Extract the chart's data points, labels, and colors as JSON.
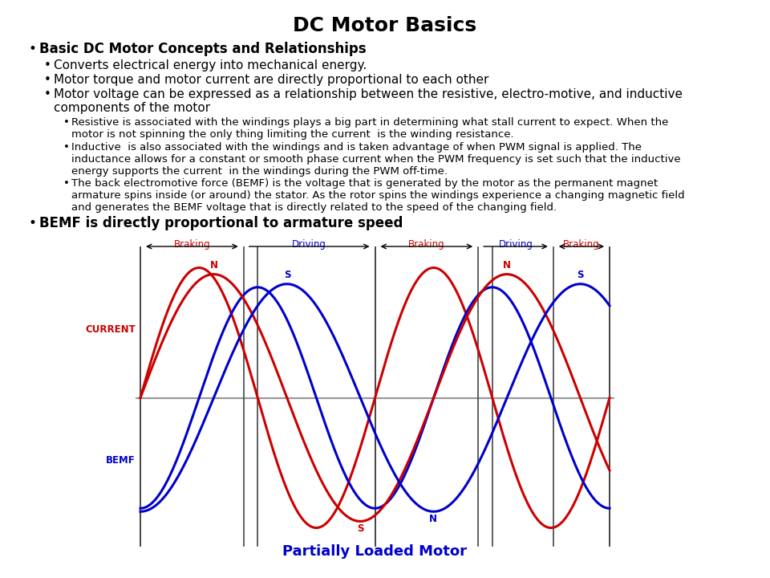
{
  "title": "DC Motor Basics",
  "title_fontsize": 18,
  "title_fontweight": "bold",
  "bg_color": "#FFFFFF",
  "text_color": "#000000",
  "bullet1_bold": "Basic DC Motor Concepts and Relationships",
  "bullet1_fontsize": 12,
  "sub_bullets": [
    "Converts electrical energy into mechanical energy.",
    "Motor torque and motor current are directly proportional to each other",
    "Motor voltage can be expressed as a relationship between the resistive, electro-motive, and inductive\ncomponents of the motor"
  ],
  "sub_sub_bullets": [
    "Resistive is associated with the windings plays a big part in determining what stall current to expect. When the\nmotor is not spinning the only thing limiting the current  is the winding resistance.",
    "Inductive  is also associated with the windings and is taken advantage of when PWM signal is applied. The\ninductance allows for a constant or smooth phase current when the PWM frequency is set such that the inductive\nenergy supports the current  in the windings during the PWM off-time.",
    "The back electromotive force (BEMF) is the voltage that is generated by the motor as the permanent magnet\narmature spins inside (or around) the stator. As the rotor spins the windings experience a changing magnetic field\nand generates the BEMF voltage that is directly related to the speed of the changing field."
  ],
  "bullet2_bold": "BEMF is directly proportional to armature speed",
  "bullet2_fontsize": 12,
  "diagram_title": "Partially Loaded Motor",
  "diagram_title_fontsize": 13,
  "current_color": "#CC0000",
  "bemf_color": "#0000CC",
  "braking_color": "#CC0000",
  "driving_color": "#0000CC",
  "section_line_color": "#444444",
  "axis_line_color": "#999999"
}
